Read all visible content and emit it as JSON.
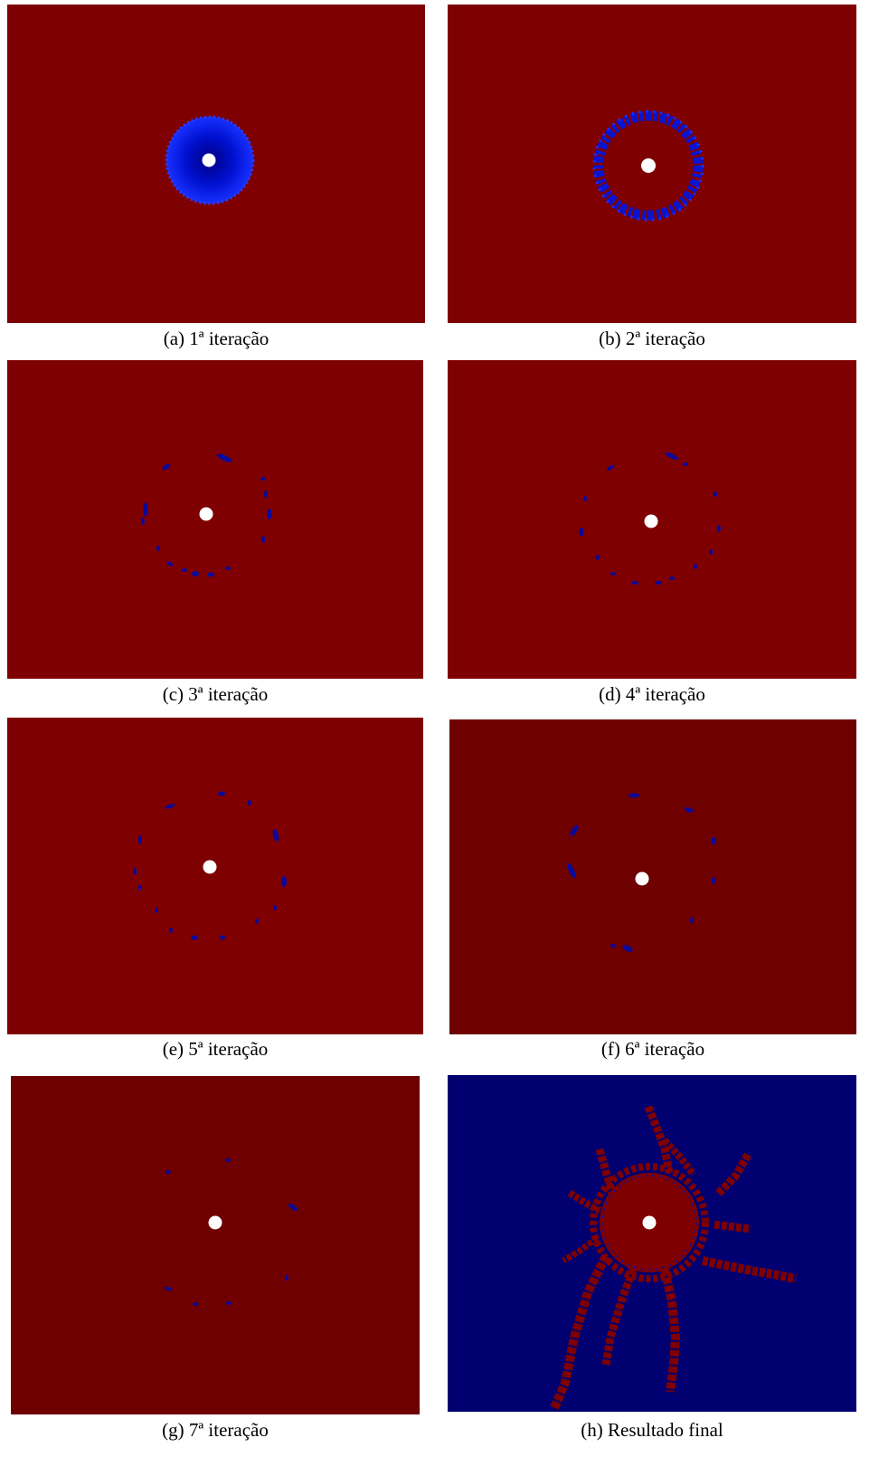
{
  "figure": {
    "colors": {
      "background_red": "#7f0000",
      "background_dark_red": "#6e0000",
      "blue": "#0000ff",
      "navy": "#000070",
      "white": "#ffffff"
    },
    "panels": [
      {
        "letter": "(a)",
        "text": "1ª iteração"
      },
      {
        "letter": "(b)",
        "text": "2ª iteração"
      },
      {
        "letter": "(c)",
        "text": "3ª iteração"
      },
      {
        "letter": "(d)",
        "text": "4ª iteração"
      },
      {
        "letter": "(e)",
        "text": "5ª iteração"
      },
      {
        "letter": "(f)",
        "text": "6ª iteração"
      },
      {
        "letter": "(g)",
        "text": "7ª iteração"
      },
      {
        "letter": "(h)",
        "text": "Resultado final"
      }
    ]
  }
}
